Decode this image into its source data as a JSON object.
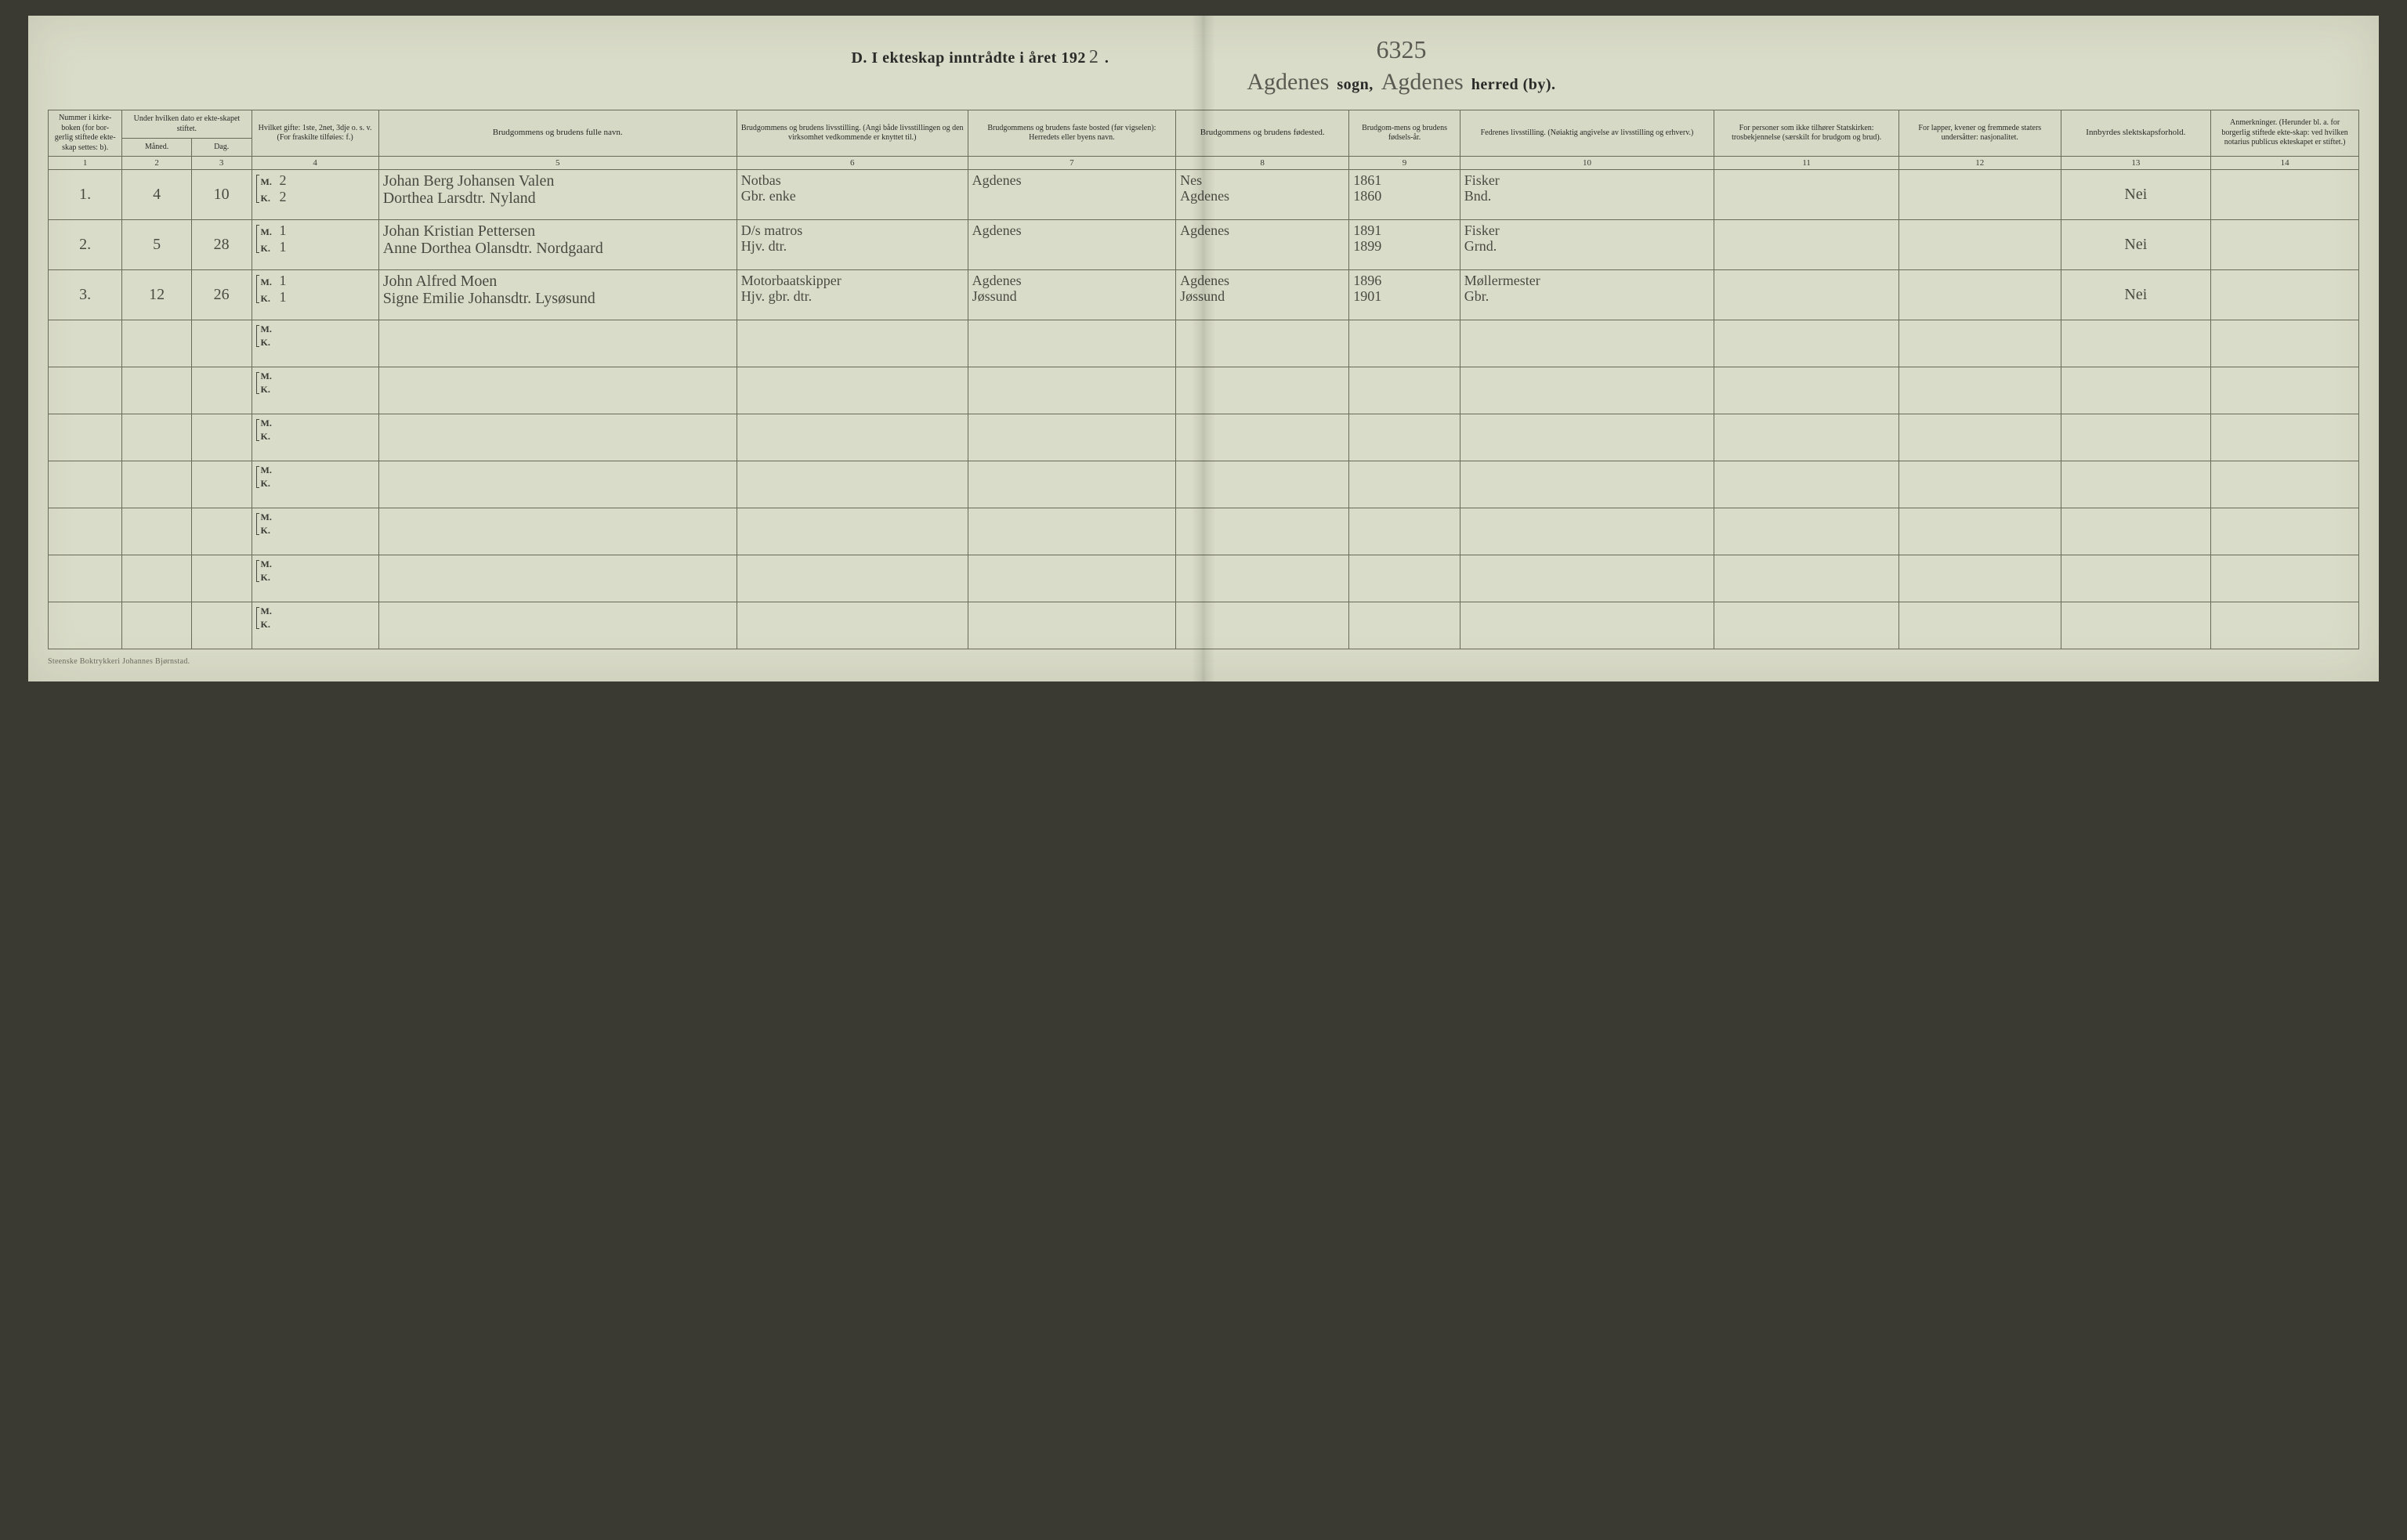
{
  "page": {
    "background_color": "#d9dcc8",
    "ink_color": "#2a2a28",
    "hand_color": "#4a4a42",
    "rule_color": "#6a6a5a",
    "document_id_handwritten": "6325",
    "footer_imprint": "Steenske Boktrykkeri Johannes Bjørnstad."
  },
  "title": {
    "prefix": "D.  I ekteskap inntrådte i året 192",
    "year_digit_hand": "2",
    "period": ".",
    "sogn_hand": "Agdenes",
    "sogn_label": "sogn,",
    "herred_hand": "Agdenes",
    "herred_label": "herred (by)."
  },
  "headers": {
    "c1": "Nummer i kirke-boken (for bor-gerlig stiftede ekte-skap settes: b).",
    "c23_group": "Under hvilken dato er ekte-skapet stiftet.",
    "c2": "Måned.",
    "c3": "Dag.",
    "c4": "Hvilket gifte: 1ste, 2net, 3dje o. s. v. (For fraskilte tilføies: f.)",
    "c5": "Brudgommens og brudens fulle navn.",
    "c6": "Brudgommens og brudens livsstilling. (Angi både livsstillingen og den virksomhet vedkommende er knyttet til.)",
    "c7": "Brudgommens og brudens faste bosted (før vigselen): Herredets eller byens navn.",
    "c8": "Brudgommens og brudens fødested.",
    "c9": "Brudgom-mens og brudens fødsels-år.",
    "c10": "Fedrenes livsstilling. (Nøiaktig angivelse av livsstilling og erhverv.)",
    "c11": "For personer som ikke tilhører Statskirken: trosbekjennelse (særskilt for brudgom og brud).",
    "c12": "For lapper, kvener og fremmede staters undersåtter: nasjonalitet.",
    "c13": "Innbyrdes slektskapsforhold.",
    "c14": "Anmerkninger. (Herunder bl. a. for borgerlig stiftede ekte-skap: ved hvilken notarius publicus ekteskapet er stiftet.)"
  },
  "colnums": [
    "1",
    "2",
    "3",
    "4",
    "5",
    "6",
    "7",
    "8",
    "9",
    "10",
    "11",
    "12",
    "13",
    "14"
  ],
  "mk_labels": {
    "m": "M.",
    "k": "K."
  },
  "entries": [
    {
      "num": "1.",
      "month": "4",
      "day": "10",
      "gifte": {
        "m": "2",
        "k": "2"
      },
      "names": {
        "m": "Johan Berg Johansen Valen",
        "k": "Dorthea Larsdtr. Nyland"
      },
      "occupation": {
        "m": "Notbas",
        "k": "Gbr. enke"
      },
      "bosted": {
        "m": "Agdenes",
        "k": ""
      },
      "fodested": {
        "m": "Nes",
        "k": "Agdenes"
      },
      "fodselsar": {
        "m": "1861",
        "k": "1860"
      },
      "fedre": {
        "m": "Fisker",
        "k": "Bnd."
      },
      "tros": {
        "m": "",
        "k": ""
      },
      "nasj": {
        "m": "",
        "k": ""
      },
      "slekt": "Nei",
      "anm": ""
    },
    {
      "num": "2.",
      "month": "5",
      "day": "28",
      "gifte": {
        "m": "1",
        "k": "1"
      },
      "names": {
        "m": "Johan Kristian Pettersen",
        "k": "Anne Dorthea Olansdtr. Nordgaard"
      },
      "occupation": {
        "m": "D/s matros",
        "k": "Hjv. dtr."
      },
      "bosted": {
        "m": "Agdenes",
        "k": ""
      },
      "fodested": {
        "m": "Agdenes",
        "k": ""
      },
      "fodselsar": {
        "m": "1891",
        "k": "1899"
      },
      "fedre": {
        "m": "Fisker",
        "k": "Grnd."
      },
      "tros": {
        "m": "",
        "k": ""
      },
      "nasj": {
        "m": "",
        "k": ""
      },
      "slekt": "Nei",
      "anm": ""
    },
    {
      "num": "3.",
      "month": "12",
      "day": "26",
      "gifte": {
        "m": "1",
        "k": "1"
      },
      "names": {
        "m": "John Alfred Moen",
        "k": "Signe Emilie Johansdtr. Lysøsund"
      },
      "occupation": {
        "m": "Motorbaatskipper",
        "k": "Hjv. gbr. dtr."
      },
      "bosted": {
        "m": "Agdenes",
        "k": "Jøssund"
      },
      "fodested": {
        "m": "Agdenes",
        "k": "Jøssund"
      },
      "fodselsar": {
        "m": "1896",
        "k": "1901"
      },
      "fedre": {
        "m": "Møllermester",
        "k": "Gbr."
      },
      "tros": {
        "m": "",
        "k": ""
      },
      "nasj": {
        "m": "",
        "k": ""
      },
      "slekt": "Nei",
      "anm": ""
    }
  ],
  "blank_rows": 7
}
